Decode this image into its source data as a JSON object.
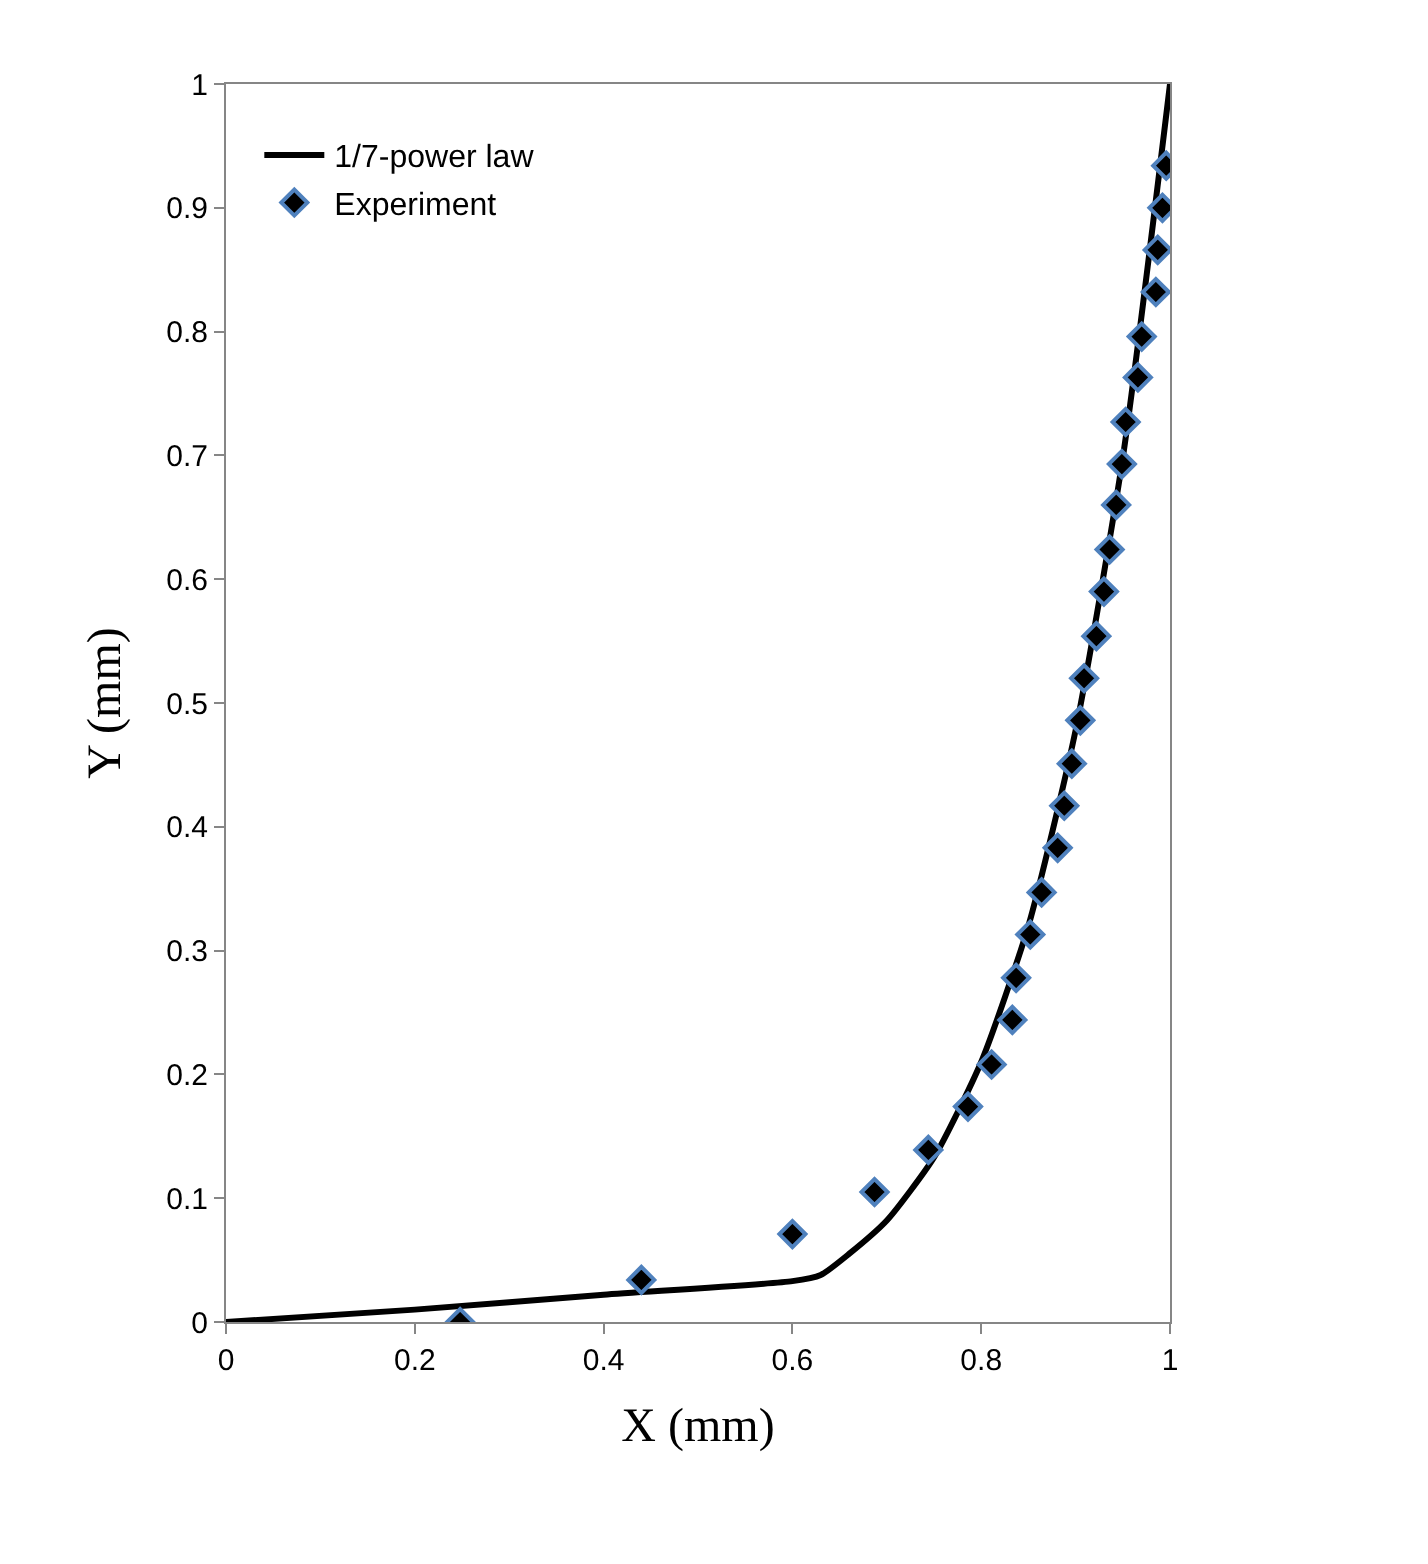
{
  "chart_data": {
    "type": "scatter",
    "xlabel": "X (mm)",
    "ylabel": "Y (mm)",
    "xlim": [
      0,
      1
    ],
    "ylim": [
      0,
      1
    ],
    "xticks": [
      0,
      0.2,
      0.4,
      0.6,
      0.8,
      1
    ],
    "yticks": [
      0,
      0.1,
      0.2,
      0.3,
      0.4,
      0.5,
      0.6,
      0.7,
      0.8,
      0.9,
      1
    ],
    "legend": "top left",
    "series": [
      {
        "name": "1/7-power law",
        "type": "line",
        "color": "#000000",
        "marker": "none",
        "line_style": "solid",
        "x": [
          0,
          0.2,
          0.4,
          0.6,
          0.63,
          0.66,
          0.7,
          0.75,
          0.8,
          0.85,
          0.9,
          0.95,
          1
        ],
        "values": [
          0,
          0.01,
          0.022,
          0.033,
          0.038,
          0.055,
          0.082,
          0.133,
          0.21,
          0.32,
          0.478,
          0.698,
          1
        ]
      },
      {
        "name": "Experiment",
        "color": "#000000",
        "marker": "diamond",
        "x": [
          0.248,
          0.44,
          0.6,
          0.687,
          0.744,
          0.786,
          0.811,
          0.833,
          0.837,
          0.852,
          0.864,
          0.881,
          0.888,
          0.896,
          0.905,
          0.909,
          0.922,
          0.93,
          0.936,
          0.943,
          0.949,
          0.953,
          0.966,
          0.97,
          0.985,
          0.987,
          0.992,
          0.996
        ],
        "values": [
          0,
          0.034,
          0.071,
          0.105,
          0.139,
          0.174,
          0.208,
          0.244,
          0.278,
          0.313,
          0.347,
          0.383,
          0.417,
          0.451,
          0.486,
          0.52,
          0.554,
          0.59,
          0.624,
          0.66,
          0.693,
          0.727,
          0.763,
          0.796,
          0.832,
          0.866,
          0.9,
          0.934
        ]
      }
    ]
  }
}
